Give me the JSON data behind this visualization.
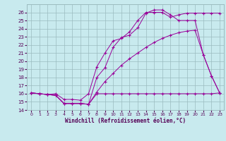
{
  "bg_color": "#c8eaee",
  "line_color": "#990099",
  "grid_color": "#9bbcbf",
  "tick_color": "#550055",
  "xlabel": "Windchill (Refroidissement éolien,°C)",
  "ylim": [
    14,
    27
  ],
  "xlim": [
    -0.5,
    23.5
  ],
  "yticks": [
    14,
    15,
    16,
    17,
    18,
    19,
    20,
    21,
    22,
    23,
    24,
    25,
    26
  ],
  "xticks": [
    0,
    1,
    2,
    3,
    4,
    5,
    6,
    7,
    8,
    9,
    10,
    11,
    12,
    13,
    14,
    15,
    16,
    17,
    18,
    19,
    20,
    21,
    22,
    23
  ],
  "series": [
    {
      "x": [
        0,
        1,
        2,
        3,
        4,
        5,
        6,
        7,
        8,
        9,
        10,
        11,
        12,
        13,
        14,
        15,
        16,
        17,
        18,
        19,
        20,
        21,
        22,
        23
      ],
      "y": [
        16.1,
        16.0,
        15.9,
        15.8,
        14.8,
        14.8,
        14.8,
        14.7,
        16.0,
        16.0,
        16.0,
        16.0,
        16.0,
        16.0,
        16.0,
        16.0,
        16.0,
        16.0,
        16.0,
        16.0,
        16.0,
        16.0,
        16.0,
        16.1
      ]
    },
    {
      "x": [
        0,
        1,
        2,
        3,
        4,
        5,
        6,
        7,
        8,
        9,
        10,
        11,
        12,
        13,
        14,
        15,
        16,
        17,
        18,
        19,
        20,
        21,
        22,
        23
      ],
      "y": [
        16.1,
        16.0,
        15.9,
        15.8,
        14.8,
        14.8,
        14.8,
        14.7,
        16.2,
        17.5,
        18.5,
        19.5,
        20.3,
        21.0,
        21.7,
        22.3,
        22.8,
        23.2,
        23.5,
        23.7,
        23.8,
        20.8,
        18.2,
        16.1
      ]
    },
    {
      "x": [
        0,
        1,
        2,
        3,
        4,
        5,
        6,
        7,
        8,
        9,
        10,
        11,
        12,
        13,
        14,
        15,
        16,
        17,
        18,
        19,
        20,
        21,
        22,
        23
      ],
      "y": [
        16.1,
        16.0,
        15.9,
        15.8,
        14.8,
        14.8,
        14.8,
        14.7,
        18.0,
        19.2,
        21.7,
        22.9,
        23.2,
        24.1,
        25.9,
        26.3,
        26.3,
        25.7,
        25.0,
        25.0,
        25.0,
        20.8,
        18.2,
        16.1
      ]
    },
    {
      "x": [
        0,
        1,
        2,
        3,
        4,
        5,
        6,
        7,
        8,
        9,
        10,
        11,
        12,
        13,
        14,
        15,
        16,
        17,
        18,
        19,
        20,
        21,
        22,
        23
      ],
      "y": [
        16.1,
        16.0,
        15.9,
        16.0,
        15.3,
        15.3,
        15.2,
        16.0,
        19.3,
        21.0,
        22.5,
        22.8,
        23.6,
        25.0,
        26.0,
        26.0,
        26.0,
        25.4,
        25.7,
        25.9,
        25.9,
        25.9,
        25.9,
        25.9
      ]
    }
  ]
}
